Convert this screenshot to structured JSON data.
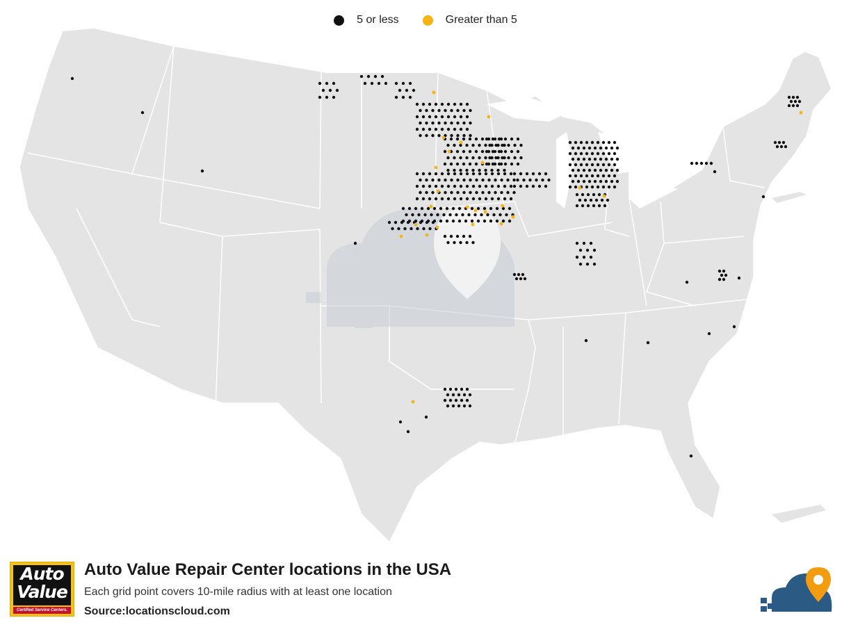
{
  "legend": {
    "small": {
      "label": "5 or less",
      "color": "#111111"
    },
    "large": {
      "label": "Greater than 5",
      "color": "#f5b316"
    }
  },
  "map": {
    "land_color": "#e4e4e4",
    "border_color": "#ffffff",
    "watermark_color": "#d0d6dc"
  },
  "footer": {
    "title": "Auto Value Repair Center locations in the USA",
    "subtitle": "Each grid point covers 10-mile radius with at least one location",
    "source": "Source:locationscloud.com",
    "logo": {
      "line1": "Auto",
      "line2": "Value",
      "tagline": "Certified Service Centers."
    }
  }
}
